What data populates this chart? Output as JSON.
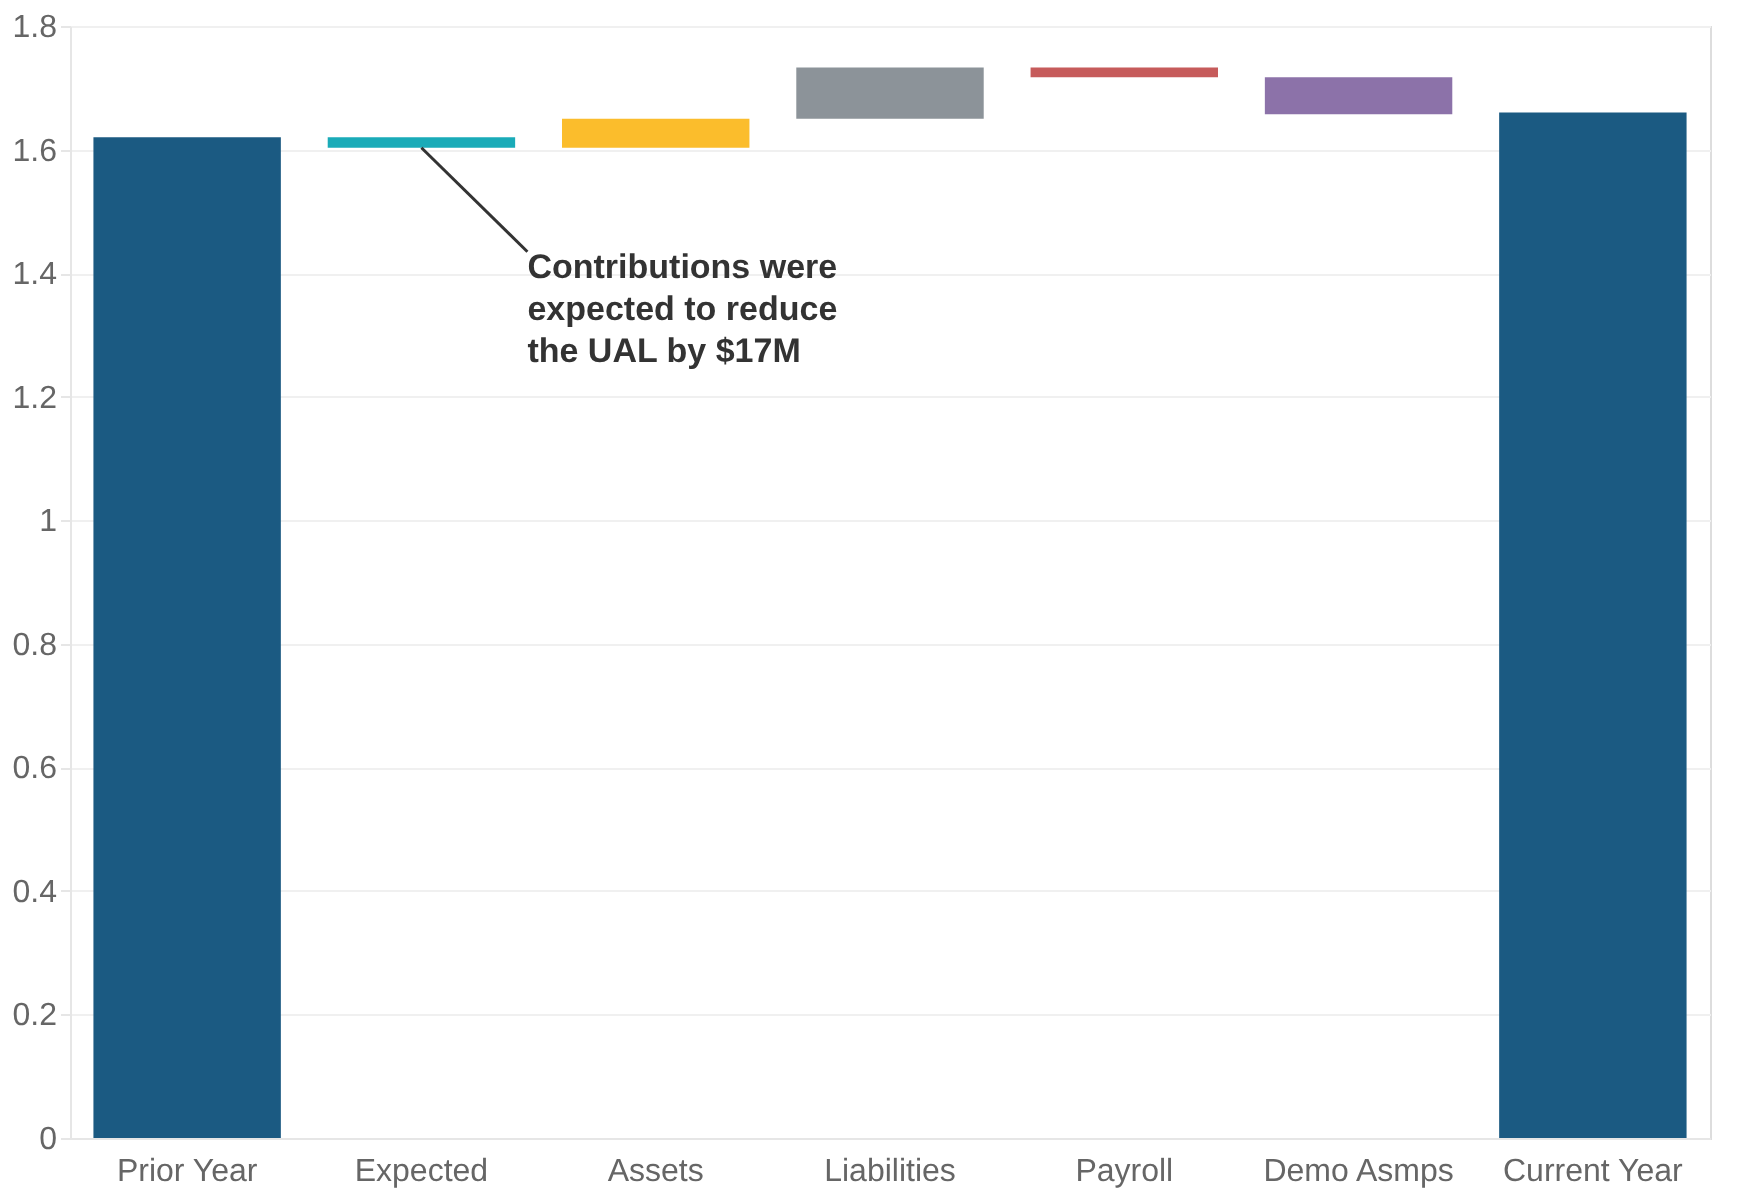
{
  "chart_data": {
    "type": "bar",
    "categories": [
      "Prior Year",
      "Expected",
      "Assets",
      "Liabilities",
      "Payroll",
      "Demo Asmps",
      "Current Year"
    ],
    "base": [
      0,
      1.62,
      1.603,
      1.65,
      1.733,
      1.717,
      0
    ],
    "values": [
      1.62,
      -0.017,
      0.047,
      0.083,
      -0.016,
      -0.06,
      1.66
    ],
    "colors": [
      "#1b5a82",
      "#1aabb8",
      "#fbbd2c",
      "#8c9399",
      "#c65b5b",
      "#8c72a9",
      "#1b5a82"
    ],
    "ylim": [
      0,
      1.8
    ],
    "yticks": [
      0,
      0.2,
      0.4,
      0.6,
      0.8,
      1,
      1.2,
      1.4,
      1.6,
      1.8
    ],
    "grid": "y",
    "annotations": [
      {
        "text": "Contributions were\nexpected to reduce\nthe UAL by $17M",
        "x": "Expected",
        "y": 1.603
      }
    ]
  }
}
